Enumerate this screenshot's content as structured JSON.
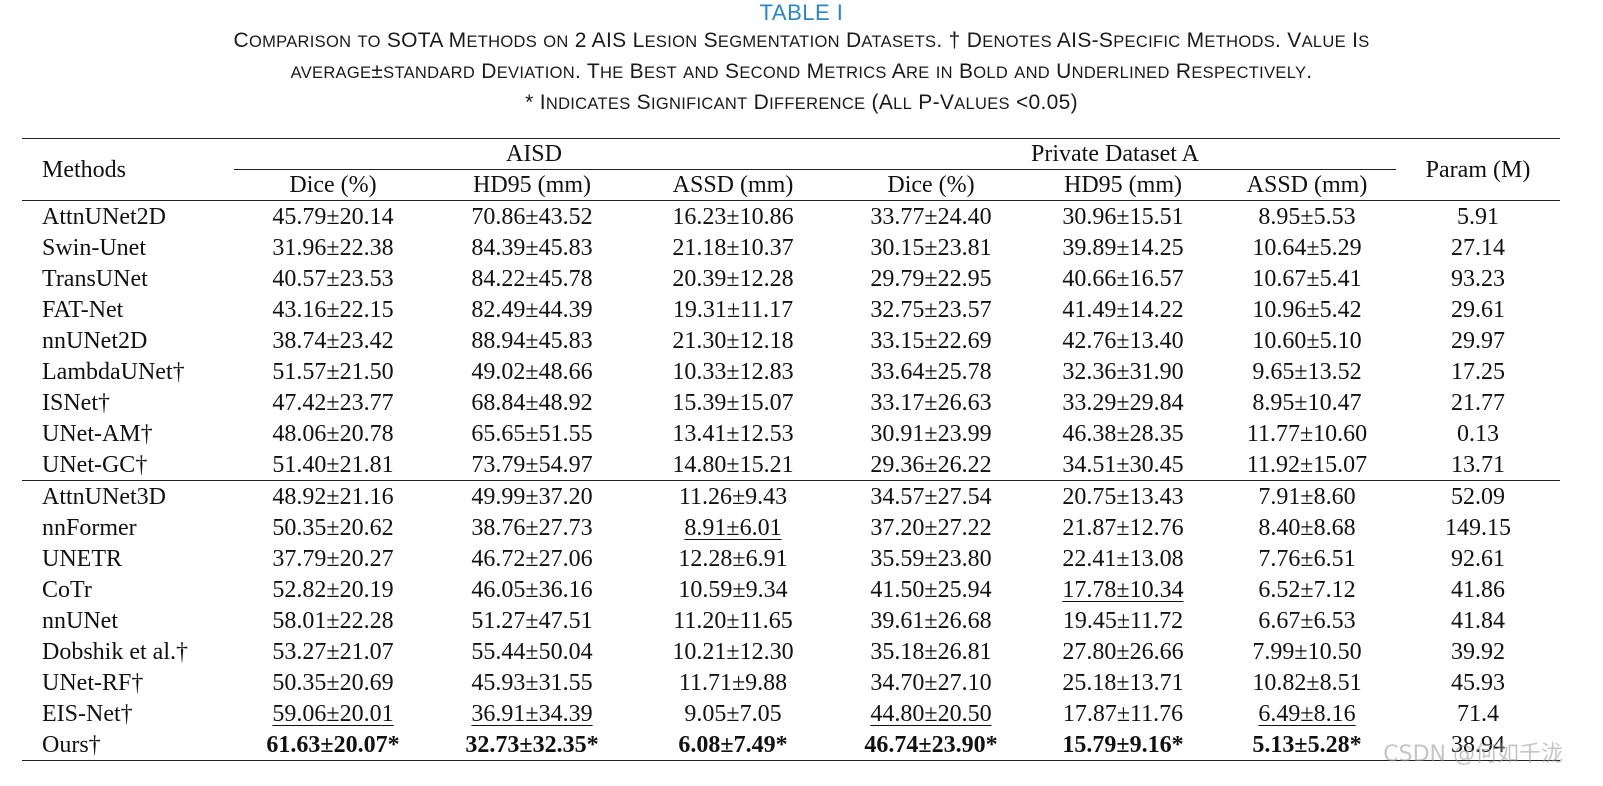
{
  "caption": {
    "label": "TABLE I",
    "line1": "Comparison to SOTA Methods on 2 AIS Lesion Segmentation Datasets. † Denotes AIS-Specific Methods. Value Is",
    "line2": "average±standard Deviation. The Best and Second Metrics Are in Bold and Underlined Respectively.",
    "line3": "* Indicates Significant Difference (All P-Values <0.05)"
  },
  "header": {
    "methods": "Methods",
    "group_aisd": "AISD",
    "group_private": "Private Dataset A",
    "param": "Param (M)",
    "dice": "Dice (%)",
    "hd95": "HD95 (mm)",
    "assd": "ASSD (mm)"
  },
  "groups": [
    {
      "rows": [
        {
          "method": "AttnUNet2D",
          "cells": [
            "45.79±20.14",
            "70.86±43.52",
            "16.23±10.86",
            "33.77±24.40",
            "30.96±15.51",
            "8.95±5.53",
            "5.91"
          ],
          "fmt": [
            "",
            "",
            "",
            "",
            "",
            "",
            ""
          ]
        },
        {
          "method": "Swin-Unet",
          "cells": [
            "31.96±22.38",
            "84.39±45.83",
            "21.18±10.37",
            "30.15±23.81",
            "39.89±14.25",
            "10.64±5.29",
            "27.14"
          ],
          "fmt": [
            "",
            "",
            "",
            "",
            "",
            "",
            ""
          ]
        },
        {
          "method": "TransUNet",
          "cells": [
            "40.57±23.53",
            "84.22±45.78",
            "20.39±12.28",
            "29.79±22.95",
            "40.66±16.57",
            "10.67±5.41",
            "93.23"
          ],
          "fmt": [
            "",
            "",
            "",
            "",
            "",
            "",
            ""
          ]
        },
        {
          "method": "FAT-Net",
          "cells": [
            "43.16±22.15",
            "82.49±44.39",
            "19.31±11.17",
            "32.75±23.57",
            "41.49±14.22",
            "10.96±5.42",
            "29.61"
          ],
          "fmt": [
            "",
            "",
            "",
            "",
            "",
            "",
            ""
          ]
        },
        {
          "method": "nnUNet2D",
          "cells": [
            "38.74±23.42",
            "88.94±45.83",
            "21.30±12.18",
            "33.15±22.69",
            "42.76±13.40",
            "10.60±5.10",
            "29.97"
          ],
          "fmt": [
            "",
            "",
            "",
            "",
            "",
            "",
            ""
          ]
        },
        {
          "method": "LambdaUNet†",
          "cells": [
            "51.57±21.50",
            "49.02±48.66",
            "10.33±12.83",
            "33.64±25.78",
            "32.36±31.90",
            "9.65±13.52",
            "17.25"
          ],
          "fmt": [
            "",
            "",
            "",
            "",
            "",
            "",
            ""
          ]
        },
        {
          "method": "ISNet†",
          "cells": [
            "47.42±23.77",
            "68.84±48.92",
            "15.39±15.07",
            "33.17±26.63",
            "33.29±29.84",
            "8.95±10.47",
            "21.77"
          ],
          "fmt": [
            "",
            "",
            "",
            "",
            "",
            "",
            ""
          ]
        },
        {
          "method": "UNet-AM†",
          "cells": [
            "48.06±20.78",
            "65.65±51.55",
            "13.41±12.53",
            "30.91±23.99",
            "46.38±28.35",
            "11.77±10.60",
            "0.13"
          ],
          "fmt": [
            "",
            "",
            "",
            "",
            "",
            "",
            ""
          ]
        },
        {
          "method": "UNet-GC†",
          "cells": [
            "51.40±21.81",
            "73.79±54.97",
            "14.80±15.21",
            "29.36±26.22",
            "34.51±30.45",
            "11.92±15.07",
            "13.71"
          ],
          "fmt": [
            "",
            "",
            "",
            "",
            "",
            "",
            ""
          ]
        }
      ]
    },
    {
      "rows": [
        {
          "method": "AttnUNet3D",
          "cells": [
            "48.92±21.16",
            "49.99±37.20",
            "11.26±9.43",
            "34.57±27.54",
            "20.75±13.43",
            "7.91±8.60",
            "52.09"
          ],
          "fmt": [
            "",
            "",
            "",
            "",
            "",
            "",
            ""
          ]
        },
        {
          "method": "nnFormer",
          "cells": [
            "50.35±20.62",
            "38.76±27.73",
            "8.91±6.01",
            "37.20±27.22",
            "21.87±12.76",
            "8.40±8.68",
            "149.15"
          ],
          "fmt": [
            "",
            "",
            "ul",
            "",
            "",
            "",
            ""
          ]
        },
        {
          "method": "UNETR",
          "cells": [
            "37.79±20.27",
            "46.72±27.06",
            "12.28±6.91",
            "35.59±23.80",
            "22.41±13.08",
            "7.76±6.51",
            "92.61"
          ],
          "fmt": [
            "",
            "",
            "",
            "",
            "",
            "",
            ""
          ]
        },
        {
          "method": "CoTr",
          "cells": [
            "52.82±20.19",
            "46.05±36.16",
            "10.59±9.34",
            "41.50±25.94",
            "17.78±10.34",
            "6.52±7.12",
            "41.86"
          ],
          "fmt": [
            "",
            "",
            "",
            "",
            "ul",
            "",
            ""
          ]
        },
        {
          "method": "nnUNet",
          "cells": [
            "58.01±22.28",
            "51.27±47.51",
            "11.20±11.65",
            "39.61±26.68",
            "19.45±11.72",
            "6.67±6.53",
            "41.84"
          ],
          "fmt": [
            "",
            "",
            "",
            "",
            "",
            "",
            ""
          ]
        },
        {
          "method": "Dobshik et al.†",
          "cells": [
            "53.27±21.07",
            "55.44±50.04",
            "10.21±12.30",
            "35.18±26.81",
            "27.80±26.66",
            "7.99±10.50",
            "39.92"
          ],
          "fmt": [
            "",
            "",
            "",
            "",
            "",
            "",
            ""
          ]
        },
        {
          "method": "UNet-RF†",
          "cells": [
            "50.35±20.69",
            "45.93±31.55",
            "11.71±9.88",
            "34.70±27.10",
            "25.18±13.71",
            "10.82±8.51",
            "45.93"
          ],
          "fmt": [
            "",
            "",
            "",
            "",
            "",
            "",
            ""
          ]
        },
        {
          "method": "EIS-Net†",
          "cells": [
            "59.06±20.01",
            "36.91±34.39",
            "9.05±7.05",
            "44.80±20.50",
            "17.87±11.76",
            "6.49±8.16",
            "71.4"
          ],
          "fmt": [
            "ul",
            "ul",
            "",
            "ul",
            "",
            "ul",
            ""
          ]
        },
        {
          "method": "Ours†",
          "cells": [
            "61.63±20.07*",
            "32.73±32.35*",
            "6.08±7.49*",
            "46.74±23.90*",
            "15.79±9.16*",
            "5.13±5.28*",
            "38.94"
          ],
          "fmt": [
            "bold",
            "bold",
            "bold",
            "bold",
            "bold",
            "bold",
            ""
          ]
        }
      ]
    }
  ],
  "watermark": "CSDN @何如千泷"
}
